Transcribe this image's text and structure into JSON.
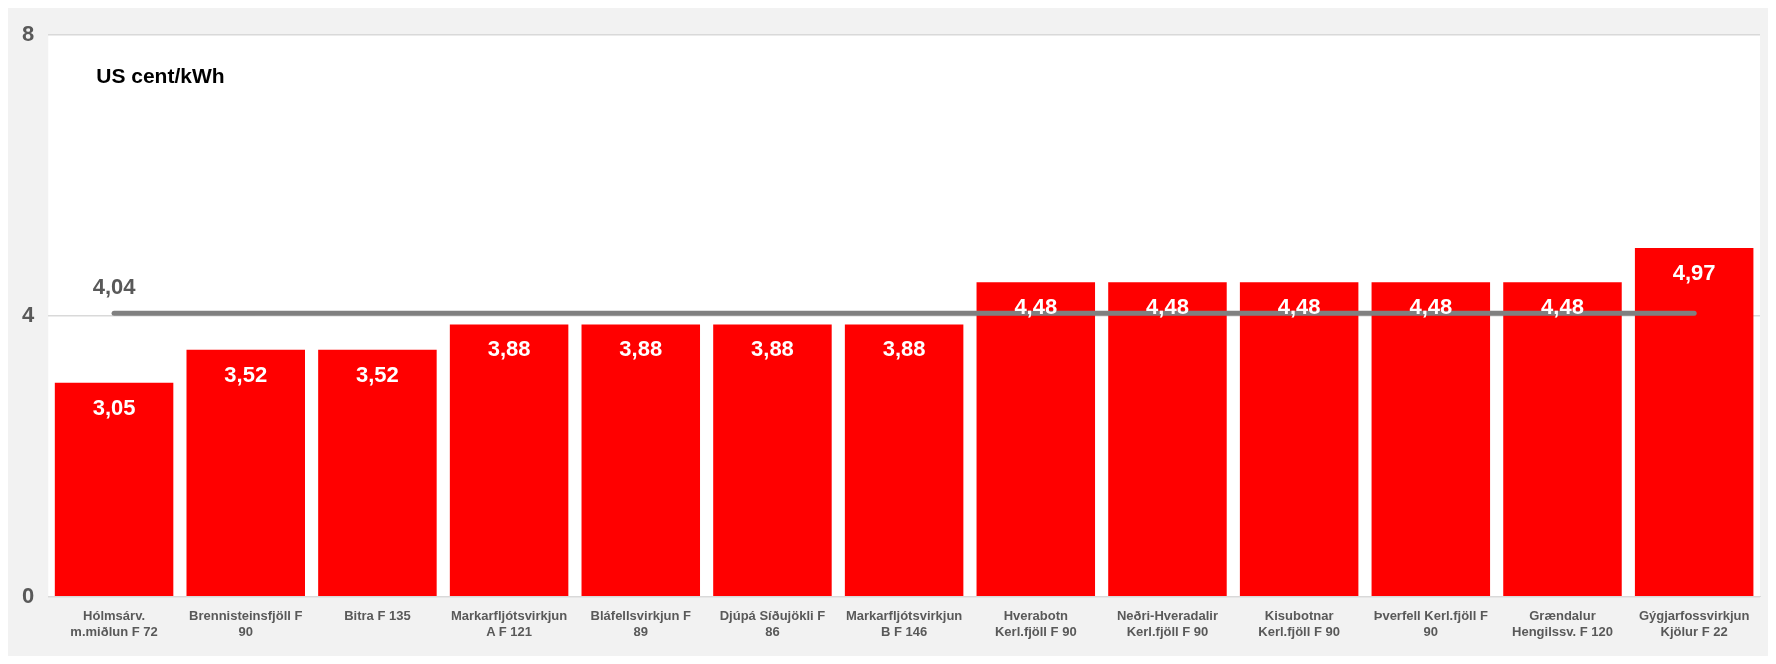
{
  "chart_data": {
    "type": "bar",
    "ylabel": "US cent/kWh",
    "categories": [
      "Hólmsárv. m.miðlun  F 72",
      "Brennisteinsfjöll  F 90",
      "Bitra  F 135",
      "Markarfljótsvirkjun A  F 121",
      "Bláfellsvirkjun  F 89",
      "Djúpá Síðujökli  F 86",
      "Markarfljótsvirkjun B  F 146",
      "Hverabotn Kerl.fjöll F 90",
      "Neðri-Hveradalir Kerl.fjöll  F 90",
      "Kisubotnar Kerl.fjöll F 90",
      "Þverfell  Kerl.fjöll  F 90",
      "Grændalur Hengilssv.  F 120",
      "Gýgjarfossvirkjun Kjölur  F 22"
    ],
    "values": [
      3.05,
      3.52,
      3.52,
      3.88,
      3.88,
      3.88,
      3.88,
      4.48,
      4.48,
      4.48,
      4.48,
      4.48,
      4.97
    ],
    "value_labels": [
      "3,05",
      "3,52",
      "3,52",
      "3,88",
      "3,88",
      "3,88",
      "3,88",
      "4,48",
      "4,48",
      "4,48",
      "4,48",
      "4,48",
      "4,97"
    ],
    "color": "#ff0000",
    "ylim": [
      0,
      8
    ],
    "yticks": [
      0,
      4,
      8
    ],
    "grid": "y",
    "ref_lines": [
      {
        "axis": "y",
        "value": 4.04,
        "label": "4,04",
        "color": "#808080"
      }
    ]
  }
}
